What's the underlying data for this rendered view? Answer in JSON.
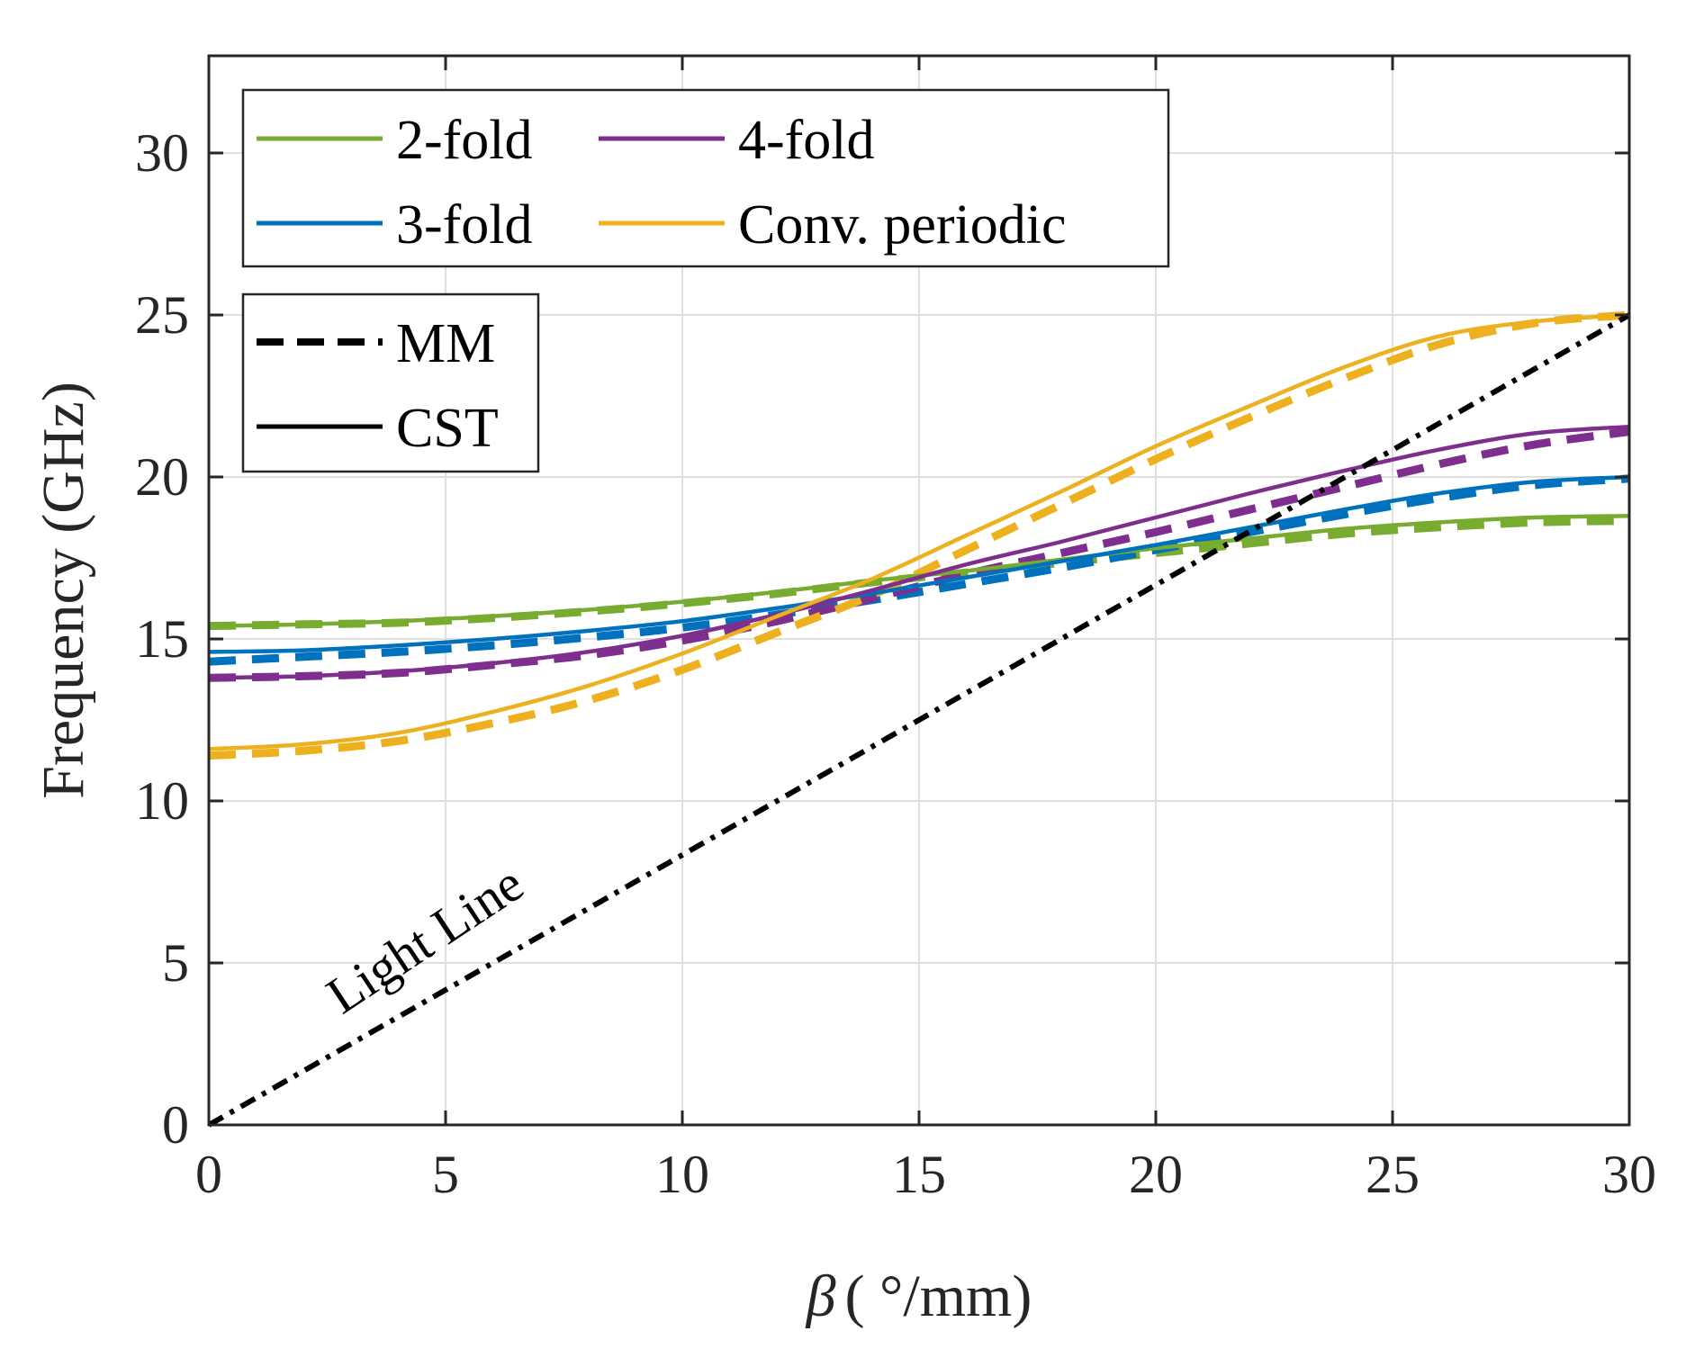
{
  "chart_data": {
    "type": "line",
    "title": "",
    "xlabel_symbol": "β",
    "xlabel_unit": "( °/mm)",
    "ylabel": "Frequency (GHz)",
    "xlim": [
      0,
      30
    ],
    "ylim": [
      0,
      33
    ],
    "xticks": [
      0,
      5,
      10,
      15,
      20,
      25,
      30
    ],
    "yticks": [
      0,
      5,
      10,
      15,
      20,
      25,
      30
    ],
    "grid": true,
    "x": [
      0,
      2,
      4,
      6,
      8,
      10,
      12,
      14,
      16,
      18,
      20,
      22,
      24,
      26,
      28,
      30
    ],
    "series": [
      {
        "name": "2-fold",
        "method": "CST",
        "color": "#77AC30",
        "dash": "solid",
        "values": [
          15.4,
          15.45,
          15.55,
          15.7,
          15.9,
          16.15,
          16.45,
          16.8,
          17.1,
          17.45,
          17.8,
          18.1,
          18.4,
          18.6,
          18.75,
          18.8
        ]
      },
      {
        "name": "2-fold",
        "method": "MM",
        "color": "#77AC30",
        "dash": "dashed",
        "values": [
          15.4,
          15.45,
          15.5,
          15.65,
          15.85,
          16.1,
          16.4,
          16.75,
          17.05,
          17.35,
          17.65,
          17.95,
          18.25,
          18.45,
          18.6,
          18.65
        ]
      },
      {
        "name": "3-fold",
        "method": "CST",
        "color": "#0072BD",
        "dash": "solid",
        "values": [
          14.6,
          14.65,
          14.8,
          15.0,
          15.25,
          15.55,
          15.95,
          16.4,
          16.9,
          17.4,
          17.9,
          18.45,
          19.0,
          19.5,
          19.85,
          20.0
        ]
      },
      {
        "name": "3-fold",
        "method": "MM",
        "color": "#0072BD",
        "dash": "dashed",
        "values": [
          14.3,
          14.45,
          14.6,
          14.8,
          15.05,
          15.35,
          15.75,
          16.2,
          16.7,
          17.2,
          17.75,
          18.3,
          18.85,
          19.35,
          19.75,
          19.95
        ]
      },
      {
        "name": "4-fold",
        "method": "CST",
        "color": "#7E2F8E",
        "dash": "solid",
        "values": [
          13.8,
          13.85,
          14.0,
          14.25,
          14.6,
          15.1,
          15.75,
          16.5,
          17.3,
          18.0,
          18.75,
          19.5,
          20.2,
          20.85,
          21.35,
          21.55
        ]
      },
      {
        "name": "4-fold",
        "method": "MM",
        "color": "#7E2F8E",
        "dash": "dashed",
        "values": [
          13.8,
          13.85,
          13.95,
          14.2,
          14.5,
          14.95,
          15.55,
          16.25,
          17.0,
          17.65,
          18.3,
          19.0,
          19.7,
          20.4,
          21.0,
          21.4
        ]
      },
      {
        "name": "Conv. periodic",
        "method": "CST",
        "color": "#EDB120",
        "dash": "solid",
        "values": [
          11.6,
          11.75,
          12.1,
          12.75,
          13.55,
          14.55,
          15.7,
          16.85,
          18.2,
          19.55,
          20.95,
          22.2,
          23.4,
          24.35,
          24.8,
          25.0
        ]
      },
      {
        "name": "Conv. periodic",
        "method": "MM",
        "color": "#EDB120",
        "dash": "dashed",
        "values": [
          11.4,
          11.55,
          11.85,
          12.4,
          13.1,
          14.05,
          15.2,
          16.35,
          17.75,
          19.15,
          20.55,
          21.85,
          23.05,
          24.1,
          24.75,
          25.0
        ]
      },
      {
        "name": "Light Line",
        "method": "",
        "color": "#000000",
        "dash": "dashdot",
        "values": [
          0,
          1.667,
          3.333,
          5.0,
          6.667,
          8.333,
          10.0,
          11.667,
          13.333,
          15.0,
          16.667,
          18.333,
          20.0,
          21.667,
          23.333,
          25.0
        ]
      }
    ],
    "legend_position": "top-left",
    "legend_series": [
      "2-fold",
      "4-fold",
      "3-fold",
      "Conv. periodic"
    ],
    "legend_methods": [
      "MM",
      "CST"
    ],
    "annotation": "Light Line"
  }
}
